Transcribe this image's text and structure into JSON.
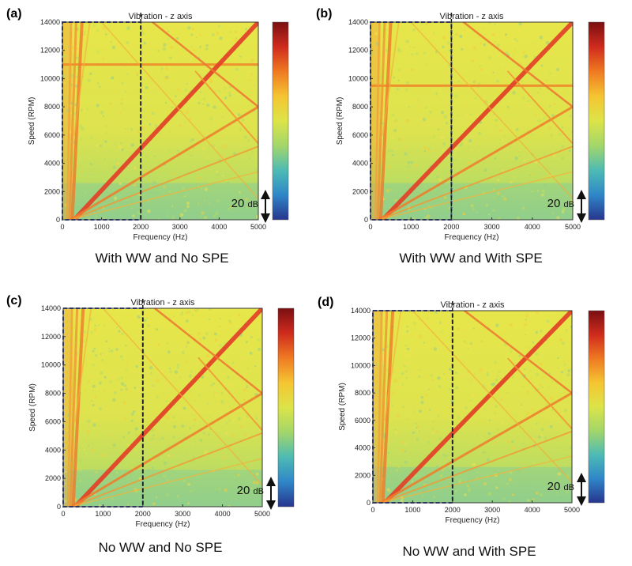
{
  "figure": {
    "colors": {
      "background": "#ffffff",
      "dashed_box": "#2b3a8c",
      "dashed_line": "#1a1a1a"
    },
    "colorbar_stops": [
      "#7a0f12",
      "#cf2b1d",
      "#ef7a22",
      "#f5c532",
      "#dce448",
      "#a3d66a",
      "#4dbbb4",
      "#2f86c8",
      "#27358e"
    ]
  },
  "chart_data": [
    {
      "type": "heatmap",
      "panel_label": "(a)",
      "title": "Vibration - z axis",
      "xlabel": "Frequency (Hz)",
      "ylabel": "Speed (RPM)",
      "xlim": [
        0,
        5000
      ],
      "ylim": [
        0,
        14000
      ],
      "xticks": [
        0,
        1000,
        2000,
        3000,
        4000,
        5000
      ],
      "yticks": [
        0,
        2000,
        4000,
        6000,
        8000,
        10000,
        12000,
        14000
      ],
      "colorbar_range_label": "20 dB",
      "highlight_region": {
        "x": [
          0,
          2000
        ],
        "y": [
          0,
          14000
        ]
      },
      "caption": "With WW and No SPE",
      "horizontal_band_rpm": 11000
    },
    {
      "type": "heatmap",
      "panel_label": "(b)",
      "title": "Vibration - z axis",
      "xlabel": "Frequency (Hz)",
      "ylabel": "Speed (RPM)",
      "xlim": [
        0,
        5000
      ],
      "ylim": [
        0,
        14000
      ],
      "xticks": [
        0,
        1000,
        2000,
        3000,
        4000,
        5000
      ],
      "yticks": [
        0,
        2000,
        4000,
        6000,
        8000,
        10000,
        12000,
        14000
      ],
      "colorbar_range_label": "20 dB",
      "highlight_region": {
        "x": [
          0,
          2000
        ],
        "y": [
          0,
          14000
        ]
      },
      "caption": "With WW and With SPE",
      "horizontal_band_rpm": 9500
    },
    {
      "type": "heatmap",
      "panel_label": "(c)",
      "title": "Vibration - z axis",
      "xlabel": "Frequency (Hz)",
      "ylabel": "Speed (RPM)",
      "xlim": [
        0,
        5000
      ],
      "ylim": [
        0,
        14000
      ],
      "xticks": [
        0,
        1000,
        2000,
        3000,
        4000,
        5000
      ],
      "yticks": [
        0,
        2000,
        4000,
        6000,
        8000,
        10000,
        12000,
        14000
      ],
      "colorbar_range_label": "20 dB",
      "highlight_region": {
        "x": [
          0,
          2000
        ],
        "y": [
          0,
          14000
        ]
      },
      "caption": "No WW and No SPE",
      "horizontal_band_rpm": null
    },
    {
      "type": "heatmap",
      "panel_label": "(d)",
      "title": "Vibration - z axis",
      "xlabel": "Frequency (Hz)",
      "ylabel": "Speed (RPM)",
      "xlim": [
        0,
        5000
      ],
      "ylim": [
        0,
        14000
      ],
      "xticks": [
        0,
        1000,
        2000,
        3000,
        4000,
        5000
      ],
      "yticks": [
        0,
        2000,
        4000,
        6000,
        8000,
        10000,
        12000,
        14000
      ],
      "colorbar_range_label": "20 dB",
      "highlight_region": {
        "x": [
          0,
          2000
        ],
        "y": [
          0,
          14000
        ]
      },
      "caption": "No WW and With SPE",
      "horizontal_band_rpm": null
    }
  ]
}
